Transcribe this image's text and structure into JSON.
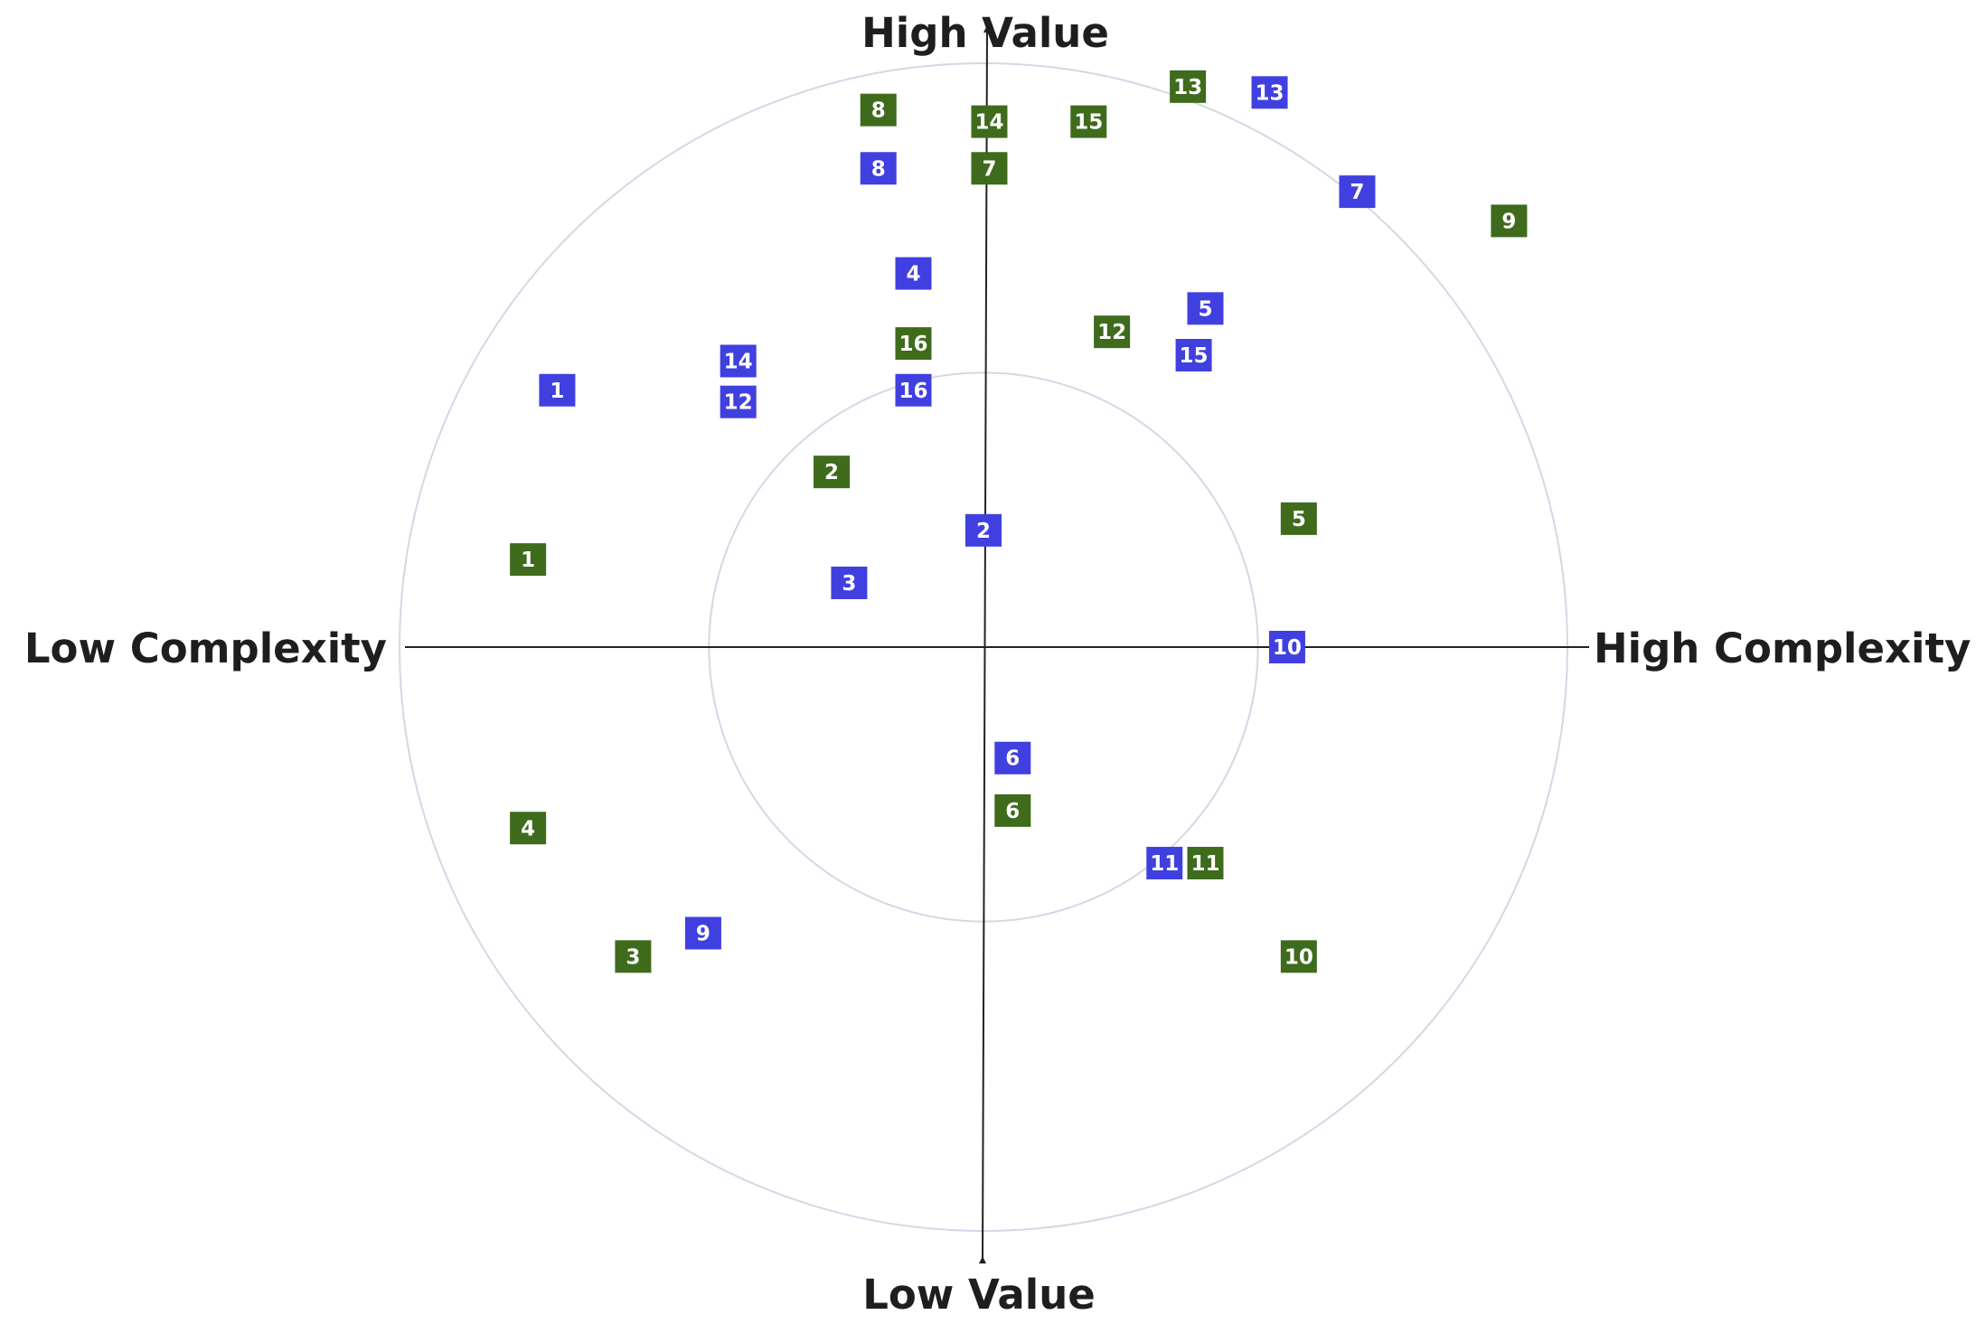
{
  "chart_data": {
    "type": "scatter",
    "axes": {
      "top": "High Value",
      "bottom": "Low Value",
      "left": "Low Complexity",
      "right": "High Complexity"
    },
    "xlim": [
      -1,
      1
    ],
    "ylim": [
      -1,
      1
    ],
    "rings": [
      0.47,
      1.0
    ],
    "series": [
      {
        "color": "#4040e0",
        "points": [
          {
            "label": "1",
            "x": -0.73,
            "y": 0.44
          },
          {
            "label": "2",
            "x": 0.0,
            "y": 0.2
          },
          {
            "label": "3",
            "x": -0.23,
            "y": 0.11
          },
          {
            "label": "4",
            "x": -0.12,
            "y": 0.64
          },
          {
            "label": "5",
            "x": 0.38,
            "y": 0.58
          },
          {
            "label": "6",
            "x": 0.05,
            "y": -0.19
          },
          {
            "label": "7",
            "x": 0.64,
            "y": 0.78
          },
          {
            "label": "8",
            "x": -0.18,
            "y": 0.82
          },
          {
            "label": "9",
            "x": -0.48,
            "y": -0.49
          },
          {
            "label": "10",
            "x": 0.52,
            "y": 0.0
          },
          {
            "label": "11",
            "x": 0.31,
            "y": -0.37
          },
          {
            "label": "12",
            "x": -0.42,
            "y": 0.42
          },
          {
            "label": "13",
            "x": 0.49,
            "y": 0.95
          },
          {
            "label": "14",
            "x": -0.42,
            "y": 0.49
          },
          {
            "label": "15",
            "x": 0.36,
            "y": 0.5
          },
          {
            "label": "16",
            "x": -0.12,
            "y": 0.44
          }
        ]
      },
      {
        "color": "#3f6b1c",
        "points": [
          {
            "label": "1",
            "x": -0.78,
            "y": 0.15
          },
          {
            "label": "2",
            "x": -0.26,
            "y": 0.3
          },
          {
            "label": "3",
            "x": -0.6,
            "y": -0.53
          },
          {
            "label": "4",
            "x": -0.78,
            "y": -0.31
          },
          {
            "label": "5",
            "x": 0.54,
            "y": 0.22
          },
          {
            "label": "6",
            "x": 0.05,
            "y": -0.28
          },
          {
            "label": "7",
            "x": 0.01,
            "y": 0.82
          },
          {
            "label": "8",
            "x": -0.18,
            "y": 0.92
          },
          {
            "label": "9",
            "x": 0.9,
            "y": 0.73
          },
          {
            "label": "10",
            "x": 0.54,
            "y": -0.53
          },
          {
            "label": "11",
            "x": 0.38,
            "y": -0.37
          },
          {
            "label": "12",
            "x": 0.22,
            "y": 0.54
          },
          {
            "label": "13",
            "x": 0.35,
            "y": 0.96
          },
          {
            "label": "14",
            "x": 0.01,
            "y": 0.9
          },
          {
            "label": "15",
            "x": 0.18,
            "y": 0.9
          },
          {
            "label": "16",
            "x": -0.12,
            "y": 0.52
          }
        ]
      }
    ]
  }
}
